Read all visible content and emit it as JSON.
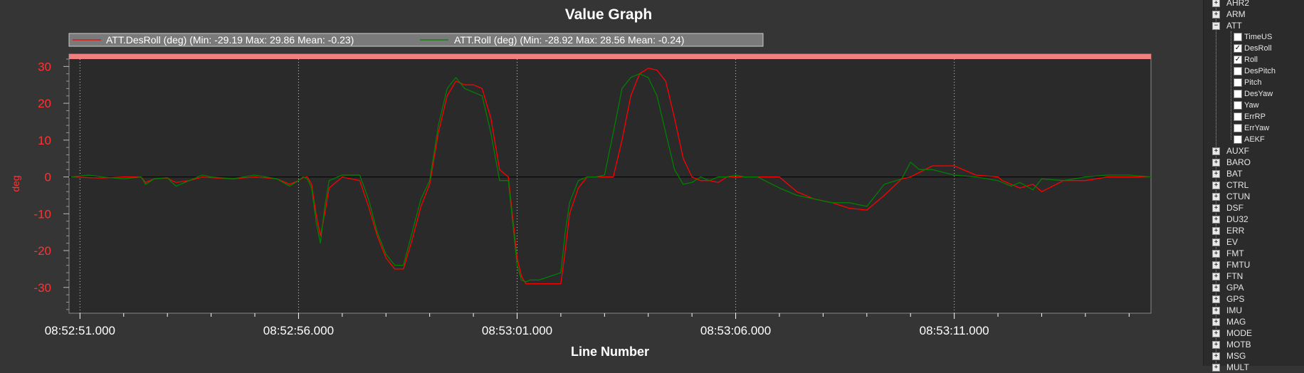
{
  "colors": {
    "background": "#353535",
    "plot_background": "#2a2a2a",
    "desroll": "#ff0000",
    "roll": "#008000",
    "axis_text": "#ffffff",
    "y_axis_text": "#ff3333",
    "band": "#f08080"
  },
  "chart_data": {
    "type": "line",
    "title": "Value Graph",
    "xlabel": "Line Number",
    "ylabel": "deg",
    "ylim": [
      -37,
      32
    ],
    "xlim": [
      -0.25,
      24.5
    ],
    "yticks": [
      30,
      20,
      10,
      0,
      -10,
      -20,
      -30
    ],
    "xtick_labels": [
      "08:52:51.000",
      "08:52:56.000",
      "08:53:01.000",
      "08:53:06.000",
      "08:53:11.000"
    ],
    "xtick_values": [
      0,
      5,
      10,
      15,
      20
    ],
    "grid_x": true,
    "legend_position": "top-left",
    "legend": [
      "ATT.DesRoll (deg) (Min: -29.19 Max: 29.86 Mean: -0.23)",
      "ATT.Roll (deg) (Min: -28.92 Max: 28.56 Mean: -0.24)"
    ],
    "series": [
      {
        "name": "ATT.DesRoll (deg)",
        "color": "#ff0000",
        "x": [
          -0.2,
          0.5,
          1.0,
          1.4,
          1.5,
          1.7,
          2.0,
          2.1,
          2.2,
          2.5,
          2.8,
          3.0,
          3.5,
          4.0,
          4.5,
          4.8,
          5.0,
          5.1,
          5.2,
          5.3,
          5.4,
          5.5,
          5.6,
          5.7,
          6.0,
          6.4,
          6.6,
          6.8,
          7.0,
          7.2,
          7.4,
          7.6,
          7.8,
          8.0,
          8.2,
          8.4,
          8.6,
          8.8,
          9.0,
          9.2,
          9.4,
          9.6,
          9.8,
          10.0,
          10.1,
          10.2,
          10.3,
          10.5,
          11.0,
          11.1,
          11.2,
          11.4,
          11.6,
          11.8,
          12.0,
          12.2,
          12.4,
          12.6,
          12.8,
          13.0,
          13.2,
          13.4,
          13.6,
          13.8,
          14.0,
          14.2,
          14.4,
          14.6,
          14.8,
          15.0,
          15.2,
          15.5,
          16.0,
          16.4,
          16.8,
          17.2,
          17.6,
          18.0,
          18.4,
          18.8,
          19.0,
          19.5,
          20.0,
          20.5,
          21.0,
          21.1,
          21.3,
          21.5,
          21.8,
          22.0,
          22.5,
          23.0,
          23.5,
          24.0,
          24.5
        ],
        "values": [
          0,
          -0.3,
          0,
          0,
          -1.5,
          -0.5,
          -0.3,
          -1,
          -1.5,
          -1,
          0,
          -0.2,
          -0.5,
          0,
          -0.5,
          -2,
          -1,
          -0.2,
          0,
          -2,
          -10,
          -16,
          -10,
          -3,
          0,
          -1,
          -8,
          -16,
          -22,
          -25,
          -25,
          -17,
          -8,
          -2,
          12,
          22,
          26,
          25,
          25,
          24,
          16,
          2,
          0,
          -22,
          -27,
          -29,
          -29,
          -29,
          -29,
          -20,
          -10,
          -3,
          0,
          0,
          0,
          0,
          10,
          22,
          28,
          29.5,
          29,
          26,
          16,
          5,
          0,
          -1,
          -1,
          -1.5,
          0,
          0,
          0,
          0,
          0,
          -4,
          -6,
          -7,
          -8.5,
          -9,
          -5,
          -0.5,
          0,
          3,
          3,
          0.5,
          0,
          -1,
          -2,
          -3,
          -2,
          -4,
          -1,
          -1,
          0,
          0,
          0
        ]
      },
      {
        "name": "ATT.Roll (deg)",
        "color": "#008000",
        "x": [
          -0.2,
          0.2,
          0.5,
          1.0,
          1.4,
          1.5,
          1.7,
          2.0,
          2.1,
          2.2,
          2.5,
          2.8,
          3.0,
          3.5,
          4.0,
          4.5,
          4.8,
          5.0,
          5.1,
          5.2,
          5.3,
          5.4,
          5.5,
          5.6,
          5.7,
          6.0,
          6.4,
          6.6,
          6.8,
          7.0,
          7.2,
          7.4,
          7.6,
          7.8,
          8.0,
          8.2,
          8.4,
          8.6,
          8.8,
          9.0,
          9.2,
          9.4,
          9.6,
          9.8,
          10.0,
          10.1,
          10.2,
          10.3,
          10.5,
          11.0,
          11.1,
          11.2,
          11.4,
          11.6,
          11.8,
          12.0,
          12.2,
          12.4,
          12.6,
          12.8,
          13.0,
          13.2,
          13.4,
          13.6,
          13.8,
          14.0,
          14.2,
          14.4,
          14.6,
          14.8,
          15.0,
          15.2,
          15.5,
          16.0,
          16.4,
          16.8,
          17.2,
          17.6,
          18.0,
          18.4,
          18.8,
          19.0,
          19.2,
          19.5,
          20.0,
          20.5,
          21.0,
          21.1,
          21.3,
          21.5,
          21.8,
          22.0,
          22.5,
          23.0,
          23.5,
          24.0,
          24.5
        ],
        "values": [
          0,
          0.5,
          0,
          -0.5,
          0,
          -2,
          -0.5,
          -0.2,
          -1.5,
          -2.5,
          -1,
          0.5,
          0,
          -0.5,
          0.5,
          -0.5,
          -2.5,
          -1,
          0,
          -0.5,
          -3,
          -12,
          -18,
          -8,
          -1,
          0.5,
          0.5,
          -6,
          -15,
          -21,
          -24,
          -24,
          -15,
          -6,
          -1,
          14,
          24,
          27,
          24,
          23,
          22,
          12,
          -1,
          -1,
          -24,
          -28,
          -28.5,
          -28,
          -28,
          -26,
          -15,
          -7,
          -1,
          0,
          0,
          0.5,
          12,
          24,
          27,
          28,
          27,
          22,
          12,
          2,
          -2,
          -1.5,
          0,
          -1,
          0,
          0,
          0.5,
          0,
          0,
          -3,
          -5,
          -6,
          -7,
          -7,
          -8,
          -2,
          -0.5,
          4,
          2,
          2,
          0.5,
          0,
          -1,
          -1.5,
          -2.5,
          -1.5,
          -3.5,
          -0.5,
          -1,
          0,
          0.5,
          0.5,
          0
        ]
      }
    ]
  },
  "sidebar": {
    "items_top": [
      {
        "label": "AHR2",
        "expanded": false
      },
      {
        "label": "ARM",
        "expanded": false
      },
      {
        "label": "ATT",
        "expanded": true
      }
    ],
    "att_children": [
      {
        "label": "TimeUS",
        "checked": false
      },
      {
        "label": "DesRoll",
        "checked": true
      },
      {
        "label": "Roll",
        "checked": true
      },
      {
        "label": "DesPitch",
        "checked": false
      },
      {
        "label": "Pitch",
        "checked": false
      },
      {
        "label": "DesYaw",
        "checked": false
      },
      {
        "label": "Yaw",
        "checked": false
      },
      {
        "label": "ErrRP",
        "checked": false
      },
      {
        "label": "ErrYaw",
        "checked": false
      },
      {
        "label": "AEKF",
        "checked": false
      }
    ],
    "items_bottom": [
      "AUXF",
      "BARO",
      "BAT",
      "CTRL",
      "CTUN",
      "DSF",
      "DU32",
      "ERR",
      "EV",
      "FMT",
      "FMTU",
      "FTN",
      "GPA",
      "GPS",
      "IMU",
      "MAG",
      "MODE",
      "MOTB",
      "MSG",
      "MULT"
    ]
  }
}
